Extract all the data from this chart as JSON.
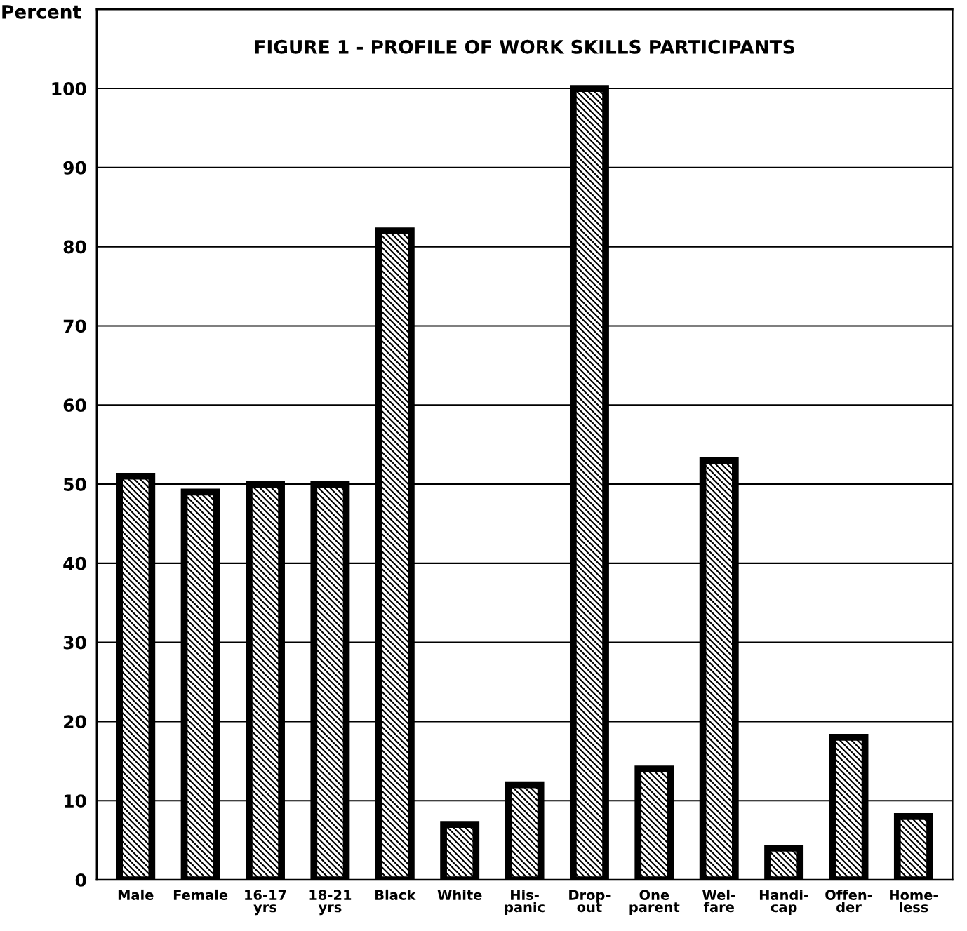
{
  "chart_data": {
    "type": "bar",
    "title": "FIGURE 1 - PROFILE OF WORK SKILLS PARTICIPANTS",
    "ylabel": "Percent",
    "categories": [
      "Male",
      "Female",
      "16-17\nyrs",
      "18-21\nyrs",
      "Black",
      "White",
      "His-\npanic",
      "Drop-\nout",
      "One\nparent",
      "Wel-\nfare",
      "Handi-\ncap",
      "Offen-\nder",
      "Home-\nless"
    ],
    "values": [
      51,
      49,
      50,
      50,
      82,
      7,
      12,
      100,
      14,
      53,
      4,
      18,
      8
    ],
    "color": "#000000",
    "ylim": [
      0,
      110
    ],
    "yticks": [
      0,
      10,
      20,
      30,
      40,
      50,
      60,
      70,
      80,
      90,
      100
    ],
    "grid": "y",
    "legend": false
  }
}
